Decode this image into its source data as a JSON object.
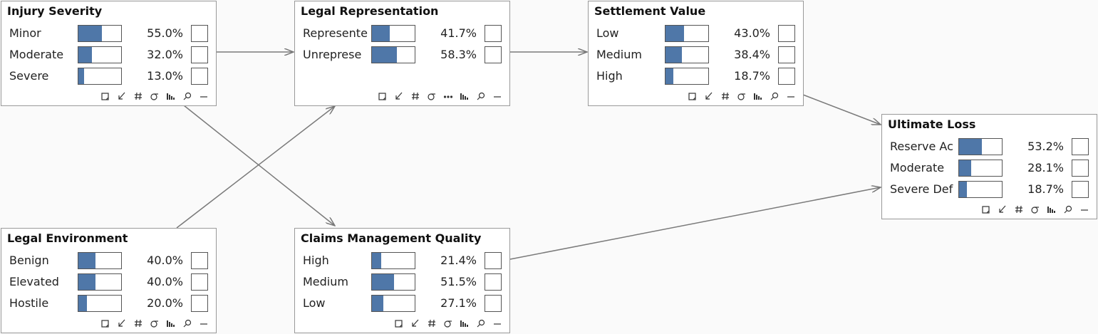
{
  "nodes": [
    {
      "title": "Injury Severity",
      "states": [
        {
          "name": "Minor",
          "value": 55.0,
          "label": "55.0%"
        },
        {
          "name": "Moderate",
          "value": 32.0,
          "label": "32.0%"
        },
        {
          "name": "Severe",
          "value": 13.0,
          "label": "13.0%"
        }
      ]
    },
    {
      "title": "Legal Representation",
      "states": [
        {
          "name": "Represente",
          "value": 41.7,
          "label": "41.7%"
        },
        {
          "name": "Unreprese",
          "value": 58.3,
          "label": "58.3%"
        }
      ]
    },
    {
      "title": "Settlement Value",
      "states": [
        {
          "name": "Low",
          "value": 43.0,
          "label": "43.0%"
        },
        {
          "name": "Medium",
          "value": 38.4,
          "label": "38.4%"
        },
        {
          "name": "High",
          "value": 18.7,
          "label": "18.7%"
        }
      ]
    },
    {
      "title": "Ultimate Loss",
      "states": [
        {
          "name": "Reserve Ac",
          "value": 53.2,
          "label": "53.2%"
        },
        {
          "name": "Moderate",
          "value": 28.1,
          "label": "28.1%"
        },
        {
          "name": "Severe Def",
          "value": 18.7,
          "label": "18.7%"
        }
      ]
    },
    {
      "title": "Legal Environment",
      "states": [
        {
          "name": "Benign",
          "value": 40.0,
          "label": "40.0%"
        },
        {
          "name": "Elevated",
          "value": 40.0,
          "label": "40.0%"
        },
        {
          "name": "Hostile",
          "value": 20.0,
          "label": "20.0%"
        }
      ]
    },
    {
      "title": "Claims Management Quality",
      "states": [
        {
          "name": "High",
          "value": 21.4,
          "label": "21.4%"
        },
        {
          "name": "Medium",
          "value": 51.5,
          "label": "51.5%"
        },
        {
          "name": "Low",
          "value": 27.1,
          "label": "27.1%"
        }
      ]
    }
  ]
}
